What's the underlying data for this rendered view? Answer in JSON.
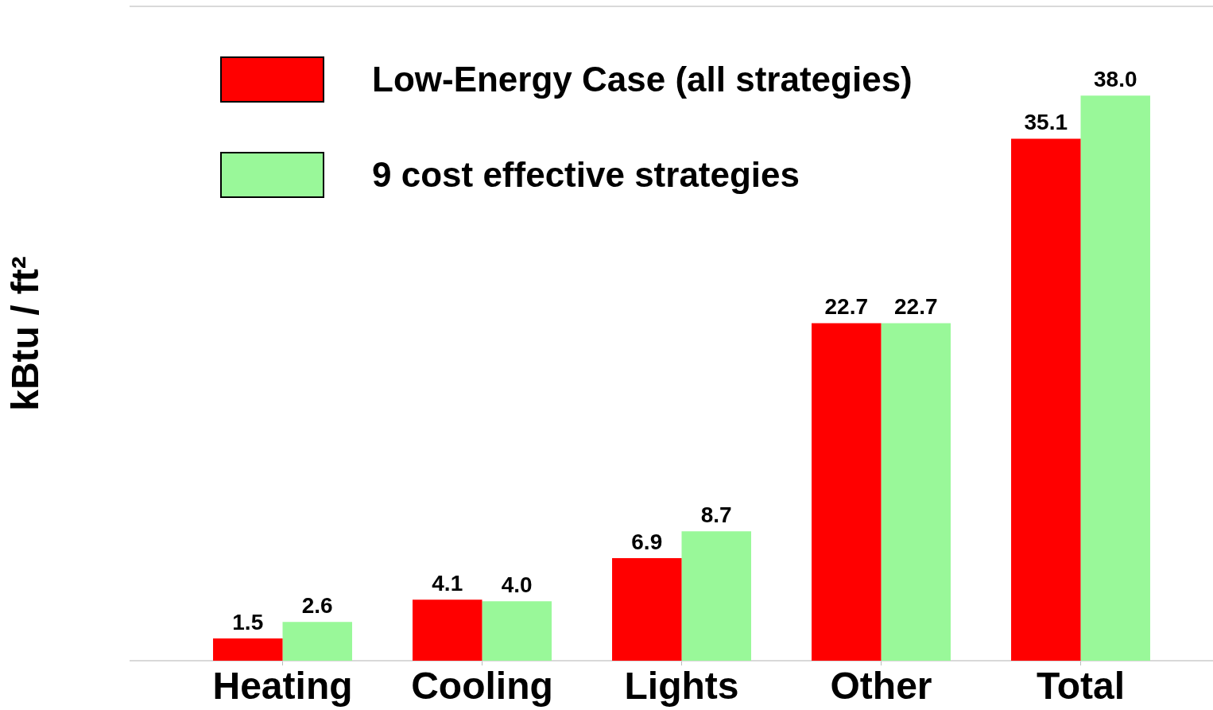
{
  "chart_data": {
    "type": "bar",
    "ylabel": "kBtu / ft²",
    "categories": [
      "Heating",
      "Cooling",
      "Lights",
      "Other",
      "Total"
    ],
    "series": [
      {
        "name": "Low-Energy Case (all strategies)",
        "color": "#ff0000",
        "values": [
          1.5,
          4.1,
          6.9,
          22.7,
          35.1
        ],
        "value_labels": [
          "1.5",
          "4.1",
          "6.9",
          "22.7",
          "35.1"
        ]
      },
      {
        "name": "9 cost effective strategies",
        "color": "#99f899",
        "values": [
          2.6,
          4.0,
          8.7,
          22.7,
          38.0
        ],
        "value_labels": [
          "2.6",
          "4.0",
          "8.7",
          "22.7",
          "38.0"
        ]
      }
    ],
    "ylim": [
      0,
      44
    ],
    "legend": "top left"
  }
}
